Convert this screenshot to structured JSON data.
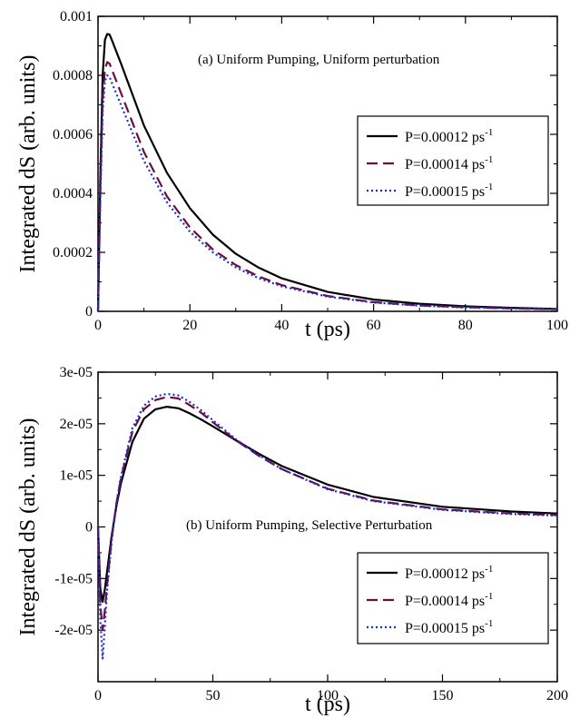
{
  "colors": {
    "black": "#000000",
    "maroon": "#6b0f3a",
    "blue": "#1a2bdc"
  },
  "chart_data": [
    {
      "type": "line",
      "annotation": "(a) Uniform Pumping, Uniform perturbation",
      "xlabel": "t (ps)",
      "ylabel": "Integrated dS (arb. units)",
      "xlim": [
        0,
        100
      ],
      "ylim": [
        0,
        0.001
      ],
      "xticks": [
        0,
        20,
        40,
        60,
        80,
        100
      ],
      "xtick_labels": [
        "0",
        "20",
        "40",
        "60",
        "80",
        "100"
      ],
      "yticks": [
        0,
        0.0002,
        0.0004,
        0.0006,
        0.0008,
        0.001
      ],
      "ytick_labels": [
        "0",
        "0.0002",
        "0.0004",
        "0.0006",
        "0.0008",
        "0.001"
      ],
      "legend_placement": "right",
      "series": [
        {
          "name": "P=0.00012 ps",
          "sup": "-1",
          "color": "#000000",
          "dash": "",
          "x": [
            0,
            0.5,
            1,
            1.5,
            2,
            2.5,
            3,
            5,
            10,
            15,
            20,
            25,
            30,
            35,
            40,
            50,
            60,
            70,
            80,
            90,
            100
          ],
          "y": [
            0,
            0.00045,
            0.0008,
            0.00092,
            0.00094,
            0.000938,
            0.00092,
            0.00084,
            0.00063,
            0.00047,
            0.00035,
            0.00026,
            0.000195,
            0.000148,
            0.000112,
            6.6e-05,
            4e-05,
            2.6e-05,
            1.7e-05,
            1.2e-05,
            8e-06
          ]
        },
        {
          "name": "P=0.00014 ps",
          "sup": "-1",
          "color": "#6b0f3a",
          "dash": "12,6",
          "x": [
            0,
            0.5,
            1,
            1.5,
            2,
            2.5,
            3,
            5,
            10,
            15,
            20,
            25,
            30,
            35,
            40,
            50,
            60,
            70,
            80,
            90,
            100
          ],
          "y": [
            0,
            0.0004,
            0.00072,
            0.00082,
            0.000845,
            0.00084,
            0.00082,
            0.00074,
            0.00054,
            0.00039,
            0.000285,
            0.00021,
            0.000157,
            0.000118,
            8.9e-05,
            5.2e-05,
            3.1e-05,
            2e-05,
            1.4e-05,
            1e-05,
            7e-06
          ]
        },
        {
          "name": "P=0.00015 ps",
          "sup": "-1",
          "color": "#1a2bdc",
          "dash": "2,3",
          "x": [
            0,
            0.5,
            1,
            1.5,
            2,
            2.5,
            3,
            5,
            10,
            15,
            20,
            25,
            30,
            35,
            40,
            50,
            60,
            70,
            80,
            90,
            100
          ],
          "y": [
            0,
            0.00038,
            0.00068,
            0.00078,
            0.0008,
            0.000795,
            0.000775,
            0.0007,
            0.00051,
            0.00037,
            0.00027,
            0.0002,
            0.000149,
            0.000112,
            8.5e-05,
            5e-05,
            3e-05,
            1.9e-05,
            1.3e-05,
            1e-05,
            7e-06
          ]
        }
      ]
    },
    {
      "type": "line",
      "annotation": "(b) Uniform Pumping, Selective Perturbation",
      "xlabel": "t (ps)",
      "ylabel": "Integrated dS (arb. units)",
      "xlim": [
        0,
        200
      ],
      "ylim": [
        -3e-05,
        3e-05
      ],
      "xticks": [
        0,
        50,
        100,
        150,
        200
      ],
      "xtick_labels": [
        "0",
        "50",
        "100",
        "150",
        "200"
      ],
      "yticks": [
        -2e-05,
        -1e-05,
        0,
        1e-05,
        2e-05,
        3e-05
      ],
      "ytick_labels": [
        "-2e-05",
        "-1e-05",
        "0",
        "1e-05",
        "2e-05",
        "3e-05"
      ],
      "legend_placement": "bottom-right",
      "series": [
        {
          "name": "P=0.00012 ps",
          "sup": "-1",
          "color": "#000000",
          "dash": "",
          "x": [
            0,
            1,
            2,
            3,
            4,
            6,
            8,
            10,
            15,
            20,
            25,
            30,
            35,
            40,
            45,
            50,
            60,
            70,
            80,
            100,
            120,
            150,
            180,
            200
          ],
          "y": [
            0,
            -1.2e-05,
            -1.45e-05,
            -1.2e-05,
            -8.5e-06,
            -1.5e-06,
            4e-06,
            8.5e-06,
            1.65e-05,
            2.1e-05,
            2.28e-05,
            2.33e-05,
            2.3e-05,
            2.2e-05,
            2.08e-05,
            1.95e-05,
            1.68e-05,
            1.42e-05,
            1.18e-05,
            8.2e-06,
            5.8e-06,
            3.9e-06,
            3e-06,
            2.6e-06
          ]
        },
        {
          "name": "P=0.00014 ps",
          "sup": "-1",
          "color": "#6b0f3a",
          "dash": "12,6",
          "x": [
            0,
            1,
            2,
            3,
            4,
            6,
            8,
            10,
            15,
            20,
            25,
            30,
            35,
            40,
            45,
            50,
            60,
            70,
            80,
            100,
            120,
            150,
            180,
            200
          ],
          "y": [
            0,
            -1.5e-05,
            -2e-05,
            -1.6e-05,
            -1.1e-05,
            -2e-06,
            4.5e-06,
            9.5e-06,
            1.85e-05,
            2.28e-05,
            2.46e-05,
            2.52e-05,
            2.49e-05,
            2.36e-05,
            2.21e-05,
            2.03e-05,
            1.68e-05,
            1.38e-05,
            1.12e-05,
            7.4e-06,
            5.1e-06,
            3.4e-06,
            2.6e-06,
            2.3e-06
          ]
        },
        {
          "name": "P=0.00015 ps",
          "sup": "-1",
          "color": "#1a2bdc",
          "dash": "2,3",
          "x": [
            0,
            1,
            2,
            3,
            4,
            6,
            8,
            10,
            15,
            20,
            25,
            30,
            35,
            40,
            45,
            50,
            60,
            70,
            80,
            100,
            120,
            150,
            180,
            200
          ],
          "y": [
            0,
            -1.8e-05,
            -2.55e-05,
            -1.9e-05,
            -1.2e-05,
            -2.5e-06,
            4.5e-06,
            9.8e-06,
            1.92e-05,
            2.35e-05,
            2.53e-05,
            2.58e-05,
            2.55e-05,
            2.42e-05,
            2.26e-05,
            2.07e-05,
            1.7e-05,
            1.39e-05,
            1.12e-05,
            7.3e-06,
            5e-06,
            3.3e-06,
            2.5e-06,
            2.2e-06
          ]
        }
      ]
    }
  ]
}
